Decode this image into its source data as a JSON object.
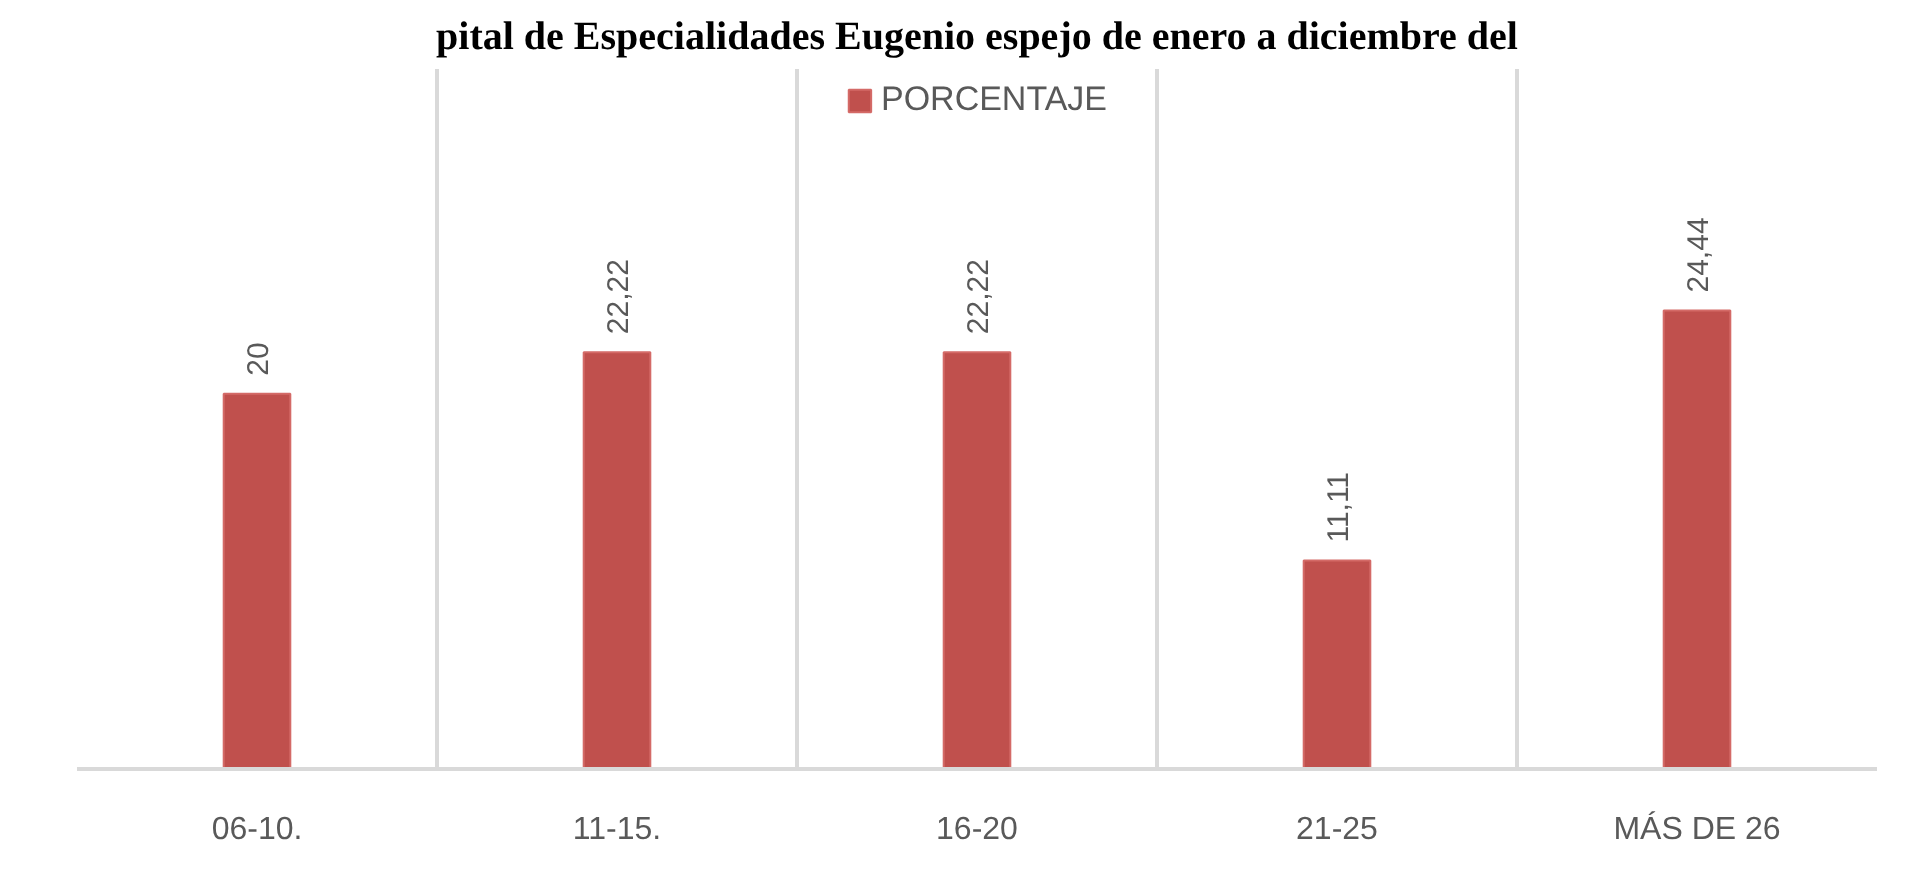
{
  "chart_data": {
    "type": "bar",
    "title": "pital de Especialidades Eugenio espejo de enero a diciembre del",
    "categories": [
      "06-10.",
      "11-15.",
      "16-20",
      "21-25",
      "MÁS DE 26"
    ],
    "series": [
      {
        "name": "PORCENTAJE",
        "color": "#c0504d",
        "values": [
          20,
          22.22,
          22.22,
          11.11,
          24.44
        ],
        "value_labels": [
          "20",
          "22,22",
          "22,22",
          "11,11",
          "24,44"
        ]
      }
    ],
    "tick_labels": "x",
    "grid": "x",
    "legend": "top"
  }
}
